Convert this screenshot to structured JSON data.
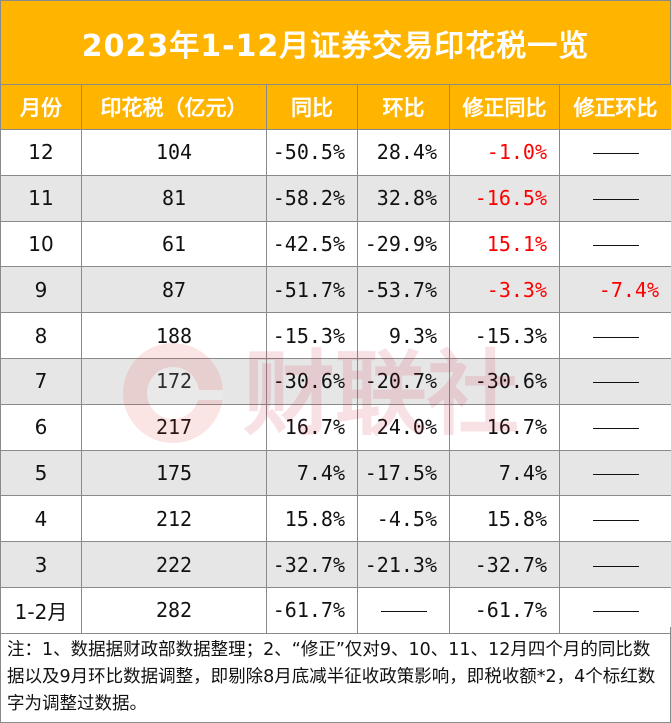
{
  "title": "2023年1-12月证券交易印花税一览",
  "headers": [
    "月份",
    "印花税（亿元）",
    "同比",
    "环比",
    "修正同比",
    "修正环比"
  ],
  "rows": [
    {
      "month": "12",
      "tax": "104",
      "yoy": "-50.5%",
      "mom": "28.4%",
      "adj_yoy": "-1.0%",
      "adj_mom": ""
    },
    {
      "month": "11",
      "tax": "81",
      "yoy": "-58.2%",
      "mom": "32.8%",
      "adj_yoy": "-16.5%",
      "adj_mom": ""
    },
    {
      "month": "10",
      "tax": "61",
      "yoy": "-42.5%",
      "mom": "-29.9%",
      "adj_yoy": "15.1%",
      "adj_mom": ""
    },
    {
      "month": "9",
      "tax": "87",
      "yoy": "-51.7%",
      "mom": "-53.7%",
      "adj_yoy": "-3.3%",
      "adj_mom": "-7.4%"
    },
    {
      "month": "8",
      "tax": "188",
      "yoy": "-15.3%",
      "mom": "9.3%",
      "adj_yoy": "-15.3%",
      "adj_mom": ""
    },
    {
      "month": "7",
      "tax": "172",
      "yoy": "-30.6%",
      "mom": "-20.7%",
      "adj_yoy": "-30.6%",
      "adj_mom": ""
    },
    {
      "month": "6",
      "tax": "217",
      "yoy": "16.7%",
      "mom": "24.0%",
      "adj_yoy": "16.7%",
      "adj_mom": ""
    },
    {
      "month": "5",
      "tax": "175",
      "yoy": "7.4%",
      "mom": "-17.5%",
      "adj_yoy": "7.4%",
      "adj_mom": ""
    },
    {
      "month": "4",
      "tax": "212",
      "yoy": "15.8%",
      "mom": "-4.5%",
      "adj_yoy": "15.8%",
      "adj_mom": ""
    },
    {
      "month": "3",
      "tax": "222",
      "yoy": "-32.7%",
      "mom": "-21.3%",
      "adj_yoy": "-32.7%",
      "adj_mom": ""
    },
    {
      "month": "1-2月",
      "tax": "282",
      "yoy": "-61.7%",
      "mom": "",
      "adj_yoy": "-61.7%",
      "adj_mom": ""
    }
  ],
  "highlight_color": "#ff0000",
  "header_color": "#ffb400",
  "stripe_color": "#e7e6e6",
  "note": "注：1、数据据财政部数据整理；2、“修正”仅对9、10、11、12月四个月的同比数据以及9月环比数据调整，即剔除8月底减半征收政策影响，即税收额*2，4个标红数字为调整过数据。",
  "watermark": "财联社"
}
